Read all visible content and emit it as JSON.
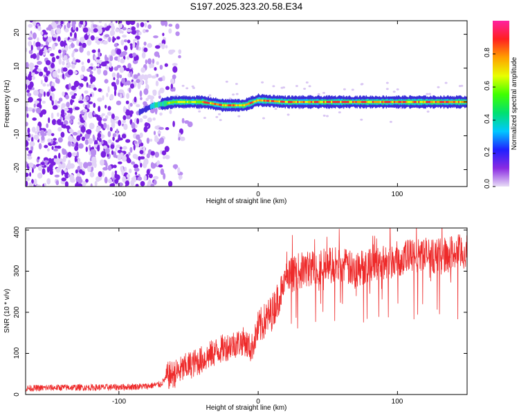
{
  "chart_data": [
    {
      "type": "heatmap",
      "title": "S197.2025.323.20.58.E34",
      "xlabel": "Height of straight line (km)",
      "ylabel": "Frequency (Hz)",
      "xlim": [
        -167,
        150
      ],
      "ylim": [
        -25,
        24
      ],
      "x_ticks": [
        -100,
        0,
        100
      ],
      "y_ticks": [
        -20,
        -10,
        0,
        10,
        20
      ],
      "x_tick_labels": [
        "-100",
        "0",
        "100"
      ],
      "y_tick_labels": [
        "-20",
        "-10",
        "0",
        "10",
        "20"
      ],
      "description_points": {
        "noise_region_x": [
          -167,
          -57
        ],
        "signal_start_x": -85,
        "signal_frequency_profile": [
          {
            "x": -85,
            "y": -3
          },
          {
            "x": -75,
            "y": -1
          },
          {
            "x": -60,
            "y": 0
          },
          {
            "x": -40,
            "y": 0
          },
          {
            "x": -25,
            "y": -1
          },
          {
            "x": -10,
            "y": -1
          },
          {
            "x": 0,
            "y": 0.5
          },
          {
            "x": 20,
            "y": 0
          },
          {
            "x": 60,
            "y": 0
          },
          {
            "x": 100,
            "y": 0
          },
          {
            "x": 150,
            "y": 0
          }
        ]
      },
      "colorbar": {
        "label": "Normalized spectral amplitude",
        "range": [
          0,
          1
        ],
        "ticks": [
          0.0,
          0.2,
          0.4,
          0.6,
          0.8
        ],
        "tick_labels": [
          "0.0",
          "0.2",
          "0.4",
          "0.6",
          "0.8"
        ],
        "colors": [
          "#e8ddf6",
          "#8a2be2",
          "#2020ff",
          "#00c8ff",
          "#00e070",
          "#40ff00",
          "#e8ff00",
          "#ffa000",
          "#ff2020",
          "#ff20a0"
        ]
      }
    },
    {
      "type": "line",
      "xlabel": "Height of straight line (km)",
      "ylabel": "SNR (10 * v/v)",
      "xlim": [
        -167,
        150
      ],
      "ylim": [
        0,
        405
      ],
      "x_ticks": [
        -100,
        0,
        100
      ],
      "y_ticks": [
        0,
        100,
        200,
        300,
        400
      ],
      "x_tick_labels": [
        "-100",
        "0",
        "100"
      ],
      "y_tick_labels": [
        "0",
        "100",
        "200",
        "300",
        "400"
      ],
      "series": [
        {
          "name": "SNR",
          "color": "#ee2a2a",
          "x": [
            -167,
            -140,
            -120,
            -100,
            -80,
            -70,
            -65,
            -60,
            -50,
            -40,
            -30,
            -20,
            -10,
            -5,
            0,
            10,
            15,
            20,
            25,
            30,
            40,
            50,
            60,
            70,
            80,
            90,
            100,
            110,
            120,
            130,
            140,
            150
          ],
          "y": [
            15,
            17,
            17,
            18,
            20,
            25,
            45,
            50,
            70,
            85,
            105,
            120,
            130,
            110,
            160,
            200,
            240,
            275,
            295,
            300,
            310,
            315,
            315,
            300,
            320,
            320,
            330,
            335,
            340,
            335,
            345,
            345
          ]
        }
      ]
    }
  ]
}
